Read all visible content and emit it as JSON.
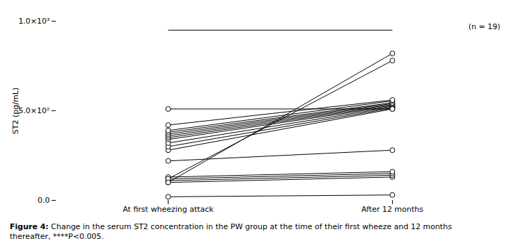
{
  "chart_data": {
    "type": "paired",
    "categories": [
      "At first wheezing attack",
      "After 12 months"
    ],
    "ylabel": "ST2 (pg/mL)",
    "ylim": [
      0,
      1000
    ],
    "yticks": [
      {
        "value": 0,
        "label": "0.0"
      },
      {
        "value": 500,
        "label": "5.0×10²"
      },
      {
        "value": 1000,
        "label": "1.0×10³"
      }
    ],
    "color": "black",
    "marker": "circle",
    "grid": false,
    "annotations": [
      "****",
      "(n = 19)"
    ],
    "caption": [
      "Figure 4:",
      " Change in the serum ST2 concentration in the PW group at the time of their first wheeze and 12 months\nthereafter, ****P<0.005."
    ],
    "series": [
      {
        "values": [
          20,
          30
        ]
      },
      {
        "values": [
          100,
          130
        ]
      },
      {
        "values": [
          110,
          140
        ]
      },
      {
        "values": [
          120,
          150
        ]
      },
      {
        "values": [
          130,
          160
        ]
      },
      {
        "values": [
          220,
          280
        ]
      },
      {
        "values": [
          280,
          510
        ]
      },
      {
        "values": [
          300,
          515
        ]
      },
      {
        "values": [
          320,
          520
        ]
      },
      {
        "values": [
          340,
          525
        ]
      },
      {
        "values": [
          350,
          530
        ]
      },
      {
        "values": [
          360,
          535
        ]
      },
      {
        "values": [
          370,
          540
        ]
      },
      {
        "values": [
          380,
          545
        ]
      },
      {
        "values": [
          390,
          555
        ]
      },
      {
        "values": [
          420,
          560
        ]
      },
      {
        "values": [
          510,
          510
        ]
      },
      {
        "values": [
          120,
          780
        ]
      },
      {
        "values": [
          100,
          820
        ]
      }
    ]
  }
}
